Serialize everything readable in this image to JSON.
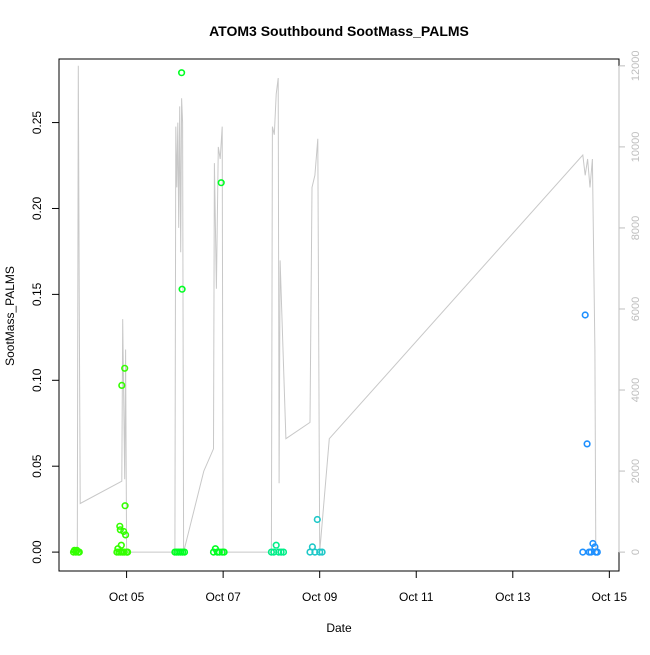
{
  "chart_data": {
    "type": "scatter",
    "title": "ATOM3 Southbound SootMass_PALMS",
    "xlabel": "Date",
    "ylabel": "SootMass_PALMS",
    "x_unit": "days (Oct 2017)",
    "xlim": [
      3.6,
      15.2
    ],
    "ylim": [
      -0.011,
      0.287
    ],
    "y2lim": [
      -466,
      12169
    ],
    "x_ticks": [
      5,
      7,
      9,
      11,
      13,
      15
    ],
    "x_tick_labels": [
      "Oct 05",
      "Oct 07",
      "Oct 09",
      "Oct 11",
      "Oct 13",
      "Oct 15"
    ],
    "y_ticks": [
      0.0,
      0.05,
      0.1,
      0.15,
      0.2,
      0.25
    ],
    "y_tick_labels": [
      "0.00",
      "0.05",
      "0.10",
      "0.15",
      "0.20",
      "0.25"
    ],
    "y2_ticks": [
      0,
      2000,
      4000,
      6000,
      8000,
      10000,
      12000
    ],
    "y2_tick_labels": [
      "0",
      "2000",
      "4000",
      "6000",
      "8000",
      "10000",
      "12000"
    ],
    "grid": false,
    "legend": "none",
    "colors": {
      "altitude_line": "#c8c8c8",
      "axis": "#000000",
      "right_axis": "#bebebe",
      "point_palette": [
        "#33ff00",
        "#00ff22",
        "#00ee88",
        "#1ec8c8",
        "#1e90ff"
      ]
    },
    "altitude_series": {
      "axis": "right",
      "points": [
        [
          3.98,
          0
        ],
        [
          4.0,
          12000
        ],
        [
          4.02,
          5900
        ],
        [
          4.04,
          1200
        ],
        [
          4.9,
          1750
        ],
        [
          4.92,
          5750
        ],
        [
          4.96,
          1800
        ],
        [
          4.98,
          5000
        ],
        [
          5.0,
          0
        ],
        [
          6.0,
          0
        ],
        [
          6.02,
          10500
        ],
        [
          6.04,
          9000
        ],
        [
          6.06,
          10600
        ],
        [
          6.08,
          8000
        ],
        [
          6.1,
          11000
        ],
        [
          6.12,
          7400
        ],
        [
          6.14,
          11200
        ],
        [
          6.16,
          10600
        ],
        [
          6.18,
          0
        ],
        [
          6.6,
          2000
        ],
        [
          6.8,
          2550
        ],
        [
          6.82,
          9600
        ],
        [
          6.86,
          6500
        ],
        [
          6.9,
          10000
        ],
        [
          6.94,
          9700
        ],
        [
          6.98,
          10500
        ],
        [
          7.0,
          0
        ],
        [
          8.0,
          0
        ],
        [
          8.02,
          10500
        ],
        [
          8.06,
          10300
        ],
        [
          8.1,
          11300
        ],
        [
          8.14,
          11700
        ],
        [
          8.16,
          1700
        ],
        [
          8.18,
          7200
        ],
        [
          8.3,
          2800
        ],
        [
          8.8,
          3200
        ],
        [
          8.84,
          9000
        ],
        [
          8.9,
          9300
        ],
        [
          8.96,
          10200
        ],
        [
          9.0,
          0
        ],
        [
          9.2,
          2800
        ],
        [
          14.45,
          9800
        ],
        [
          14.5,
          9300
        ],
        [
          14.55,
          9700
        ],
        [
          14.6,
          9000
        ],
        [
          14.65,
          9700
        ],
        [
          14.7,
          5000
        ],
        [
          14.72,
          0
        ]
      ]
    },
    "soot_points": {
      "axis": "left",
      "points": [
        [
          3.9,
          0.0
        ],
        [
          3.92,
          0.001
        ],
        [
          3.95,
          0.0
        ],
        [
          3.97,
          0.001
        ],
        [
          4.0,
          0.0
        ],
        [
          4.02,
          0.0
        ],
        [
          4.8,
          0.0
        ],
        [
          4.82,
          0.002
        ],
        [
          4.84,
          0.0
        ],
        [
          4.86,
          0.015
        ],
        [
          4.87,
          0.013
        ],
        [
          4.88,
          0.0
        ],
        [
          4.89,
          0.004
        ],
        [
          4.9,
          0.097
        ],
        [
          4.92,
          0.0
        ],
        [
          4.94,
          0.012
        ],
        [
          4.95,
          0.0
        ],
        [
          4.96,
          0.107
        ],
        [
          4.97,
          0.027
        ],
        [
          4.98,
          0.01
        ],
        [
          5.0,
          0.0
        ],
        [
          5.02,
          0.0
        ],
        [
          6.0,
          0.0
        ],
        [
          6.04,
          0.0
        ],
        [
          6.08,
          0.0
        ],
        [
          6.12,
          0.0
        ],
        [
          6.14,
          0.279
        ],
        [
          6.15,
          0.153
        ],
        [
          6.16,
          0.0
        ],
        [
          6.2,
          0.0
        ],
        [
          6.8,
          0.0
        ],
        [
          6.84,
          0.002
        ],
        [
          6.88,
          0.0
        ],
        [
          6.92,
          0.0
        ],
        [
          6.96,
          0.215
        ],
        [
          6.98,
          0.0
        ],
        [
          7.02,
          0.0
        ],
        [
          8.0,
          0.0
        ],
        [
          8.05,
          0.0
        ],
        [
          8.1,
          0.004
        ],
        [
          8.15,
          0.0
        ],
        [
          8.2,
          0.0
        ],
        [
          8.25,
          0.0
        ],
        [
          8.8,
          0.0
        ],
        [
          8.85,
          0.003
        ],
        [
          8.9,
          0.0
        ],
        [
          8.95,
          0.019
        ],
        [
          9.0,
          0.0
        ],
        [
          9.05,
          0.0
        ],
        [
          14.45,
          0.0
        ],
        [
          14.5,
          0.138
        ],
        [
          14.54,
          0.063
        ],
        [
          14.58,
          0.0
        ],
        [
          14.62,
          0.0
        ],
        [
          14.66,
          0.005
        ],
        [
          14.7,
          0.003
        ],
        [
          14.72,
          0.0
        ],
        [
          14.75,
          0.0
        ]
      ]
    }
  }
}
